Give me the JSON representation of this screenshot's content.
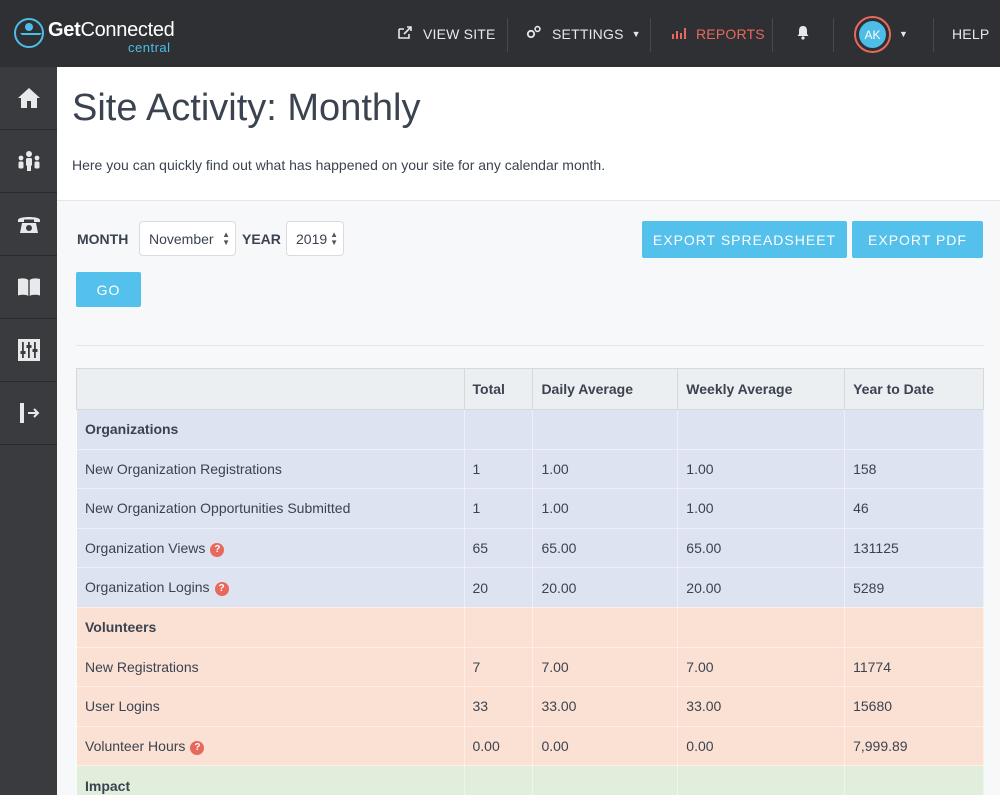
{
  "brand": {
    "name_bold": "Get",
    "name_rest": "Connected",
    "sub": "central"
  },
  "nav": {
    "view_site": "VIEW SITE",
    "settings": "SETTINGS",
    "reports": "REPORTS",
    "help": "HELP",
    "avatar_initials": "AK"
  },
  "sidebar": {
    "items": [
      {
        "icon": "home-icon"
      },
      {
        "icon": "people-icon"
      },
      {
        "icon": "phone-icon"
      },
      {
        "icon": "book-icon"
      },
      {
        "icon": "sliders-icon"
      },
      {
        "icon": "logout-icon"
      }
    ]
  },
  "page": {
    "title": "Site Activity: Monthly",
    "description": "Here you can quickly find out what has happened on your site for any calendar month."
  },
  "filters": {
    "month_label": "MONTH",
    "month_value": "November",
    "year_label": "YEAR",
    "year_value": "2019",
    "go_label": "GO",
    "export_spreadsheet": "EXPORT SPREADSHEET",
    "export_pdf": "EXPORT PDF"
  },
  "table": {
    "headers": [
      "",
      "Total",
      "Daily Average",
      "Weekly Average",
      "Year to Date"
    ],
    "rows": [
      {
        "group": "org",
        "section": true,
        "cells": [
          "Organizations",
          "",
          "",
          "",
          ""
        ]
      },
      {
        "group": "org",
        "cells": [
          "New Organization Registrations",
          "1",
          "1.00",
          "1.00",
          "158"
        ]
      },
      {
        "group": "org",
        "cells": [
          "New Organization Opportunities Submitted",
          "1",
          "1.00",
          "1.00",
          "46"
        ]
      },
      {
        "group": "org",
        "help": true,
        "cells": [
          "Organization Views",
          "65",
          "65.00",
          "65.00",
          "131125"
        ]
      },
      {
        "group": "org",
        "help": true,
        "cells": [
          "Organization Logins",
          "20",
          "20.00",
          "20.00",
          "5289"
        ]
      },
      {
        "group": "vol",
        "section": true,
        "cells": [
          "Volunteers",
          "",
          "",
          "",
          ""
        ]
      },
      {
        "group": "vol",
        "cells": [
          "New Registrations",
          "7",
          "7.00",
          "7.00",
          "11774"
        ]
      },
      {
        "group": "vol",
        "cells": [
          "User Logins",
          "33",
          "33.00",
          "33.00",
          "15680"
        ]
      },
      {
        "group": "vol",
        "help": true,
        "cells": [
          "Volunteer Hours",
          "0.00",
          "0.00",
          "0.00",
          "7,999.89"
        ]
      },
      {
        "group": "imp",
        "section": true,
        "cells": [
          "Impact",
          "",
          "",
          "",
          ""
        ]
      }
    ],
    "help_glyph": "?"
  }
}
